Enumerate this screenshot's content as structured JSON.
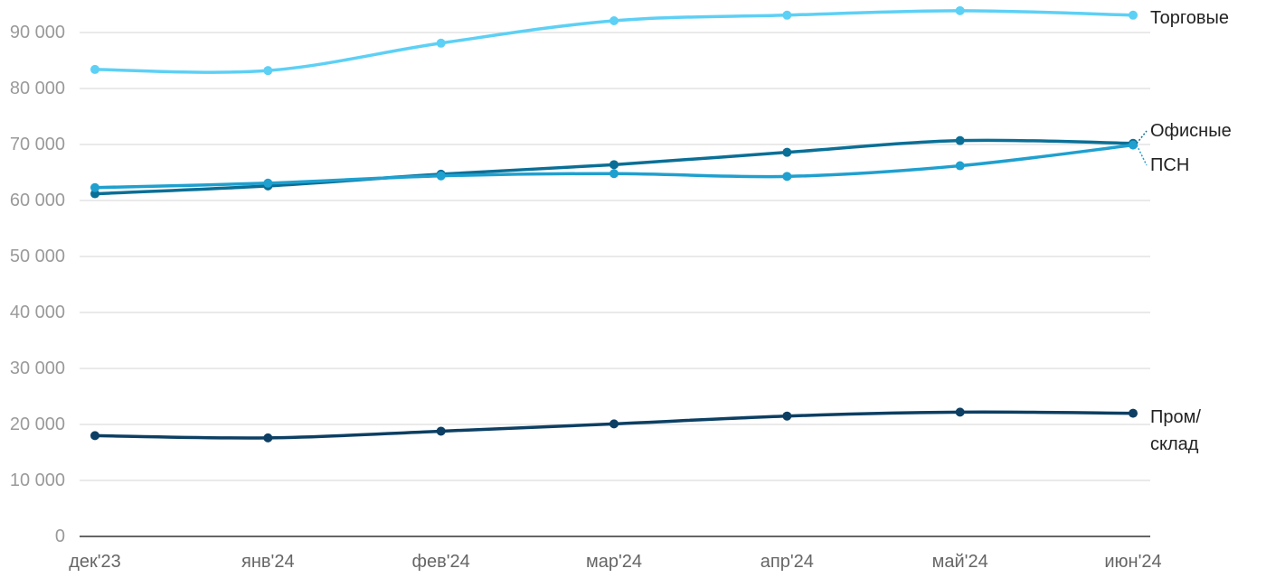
{
  "chart_data": {
    "type": "line",
    "title": "",
    "xlabel": "",
    "ylabel": "",
    "categories": [
      "дек'23",
      "янв'24",
      "фев'24",
      "мар'24",
      "апр'24",
      "май'24",
      "июн'24"
    ],
    "y_ticks": [
      "0",
      "10 000",
      "20 000",
      "30 000",
      "40 000",
      "50 000",
      "60 000",
      "70 000",
      "80 000",
      "90 000"
    ],
    "ylim": [
      0,
      96000
    ],
    "grid": true,
    "legend": "end-of-line labels",
    "series": [
      {
        "name": "Торговые",
        "color": "#5dd0f5",
        "values": [
          83400,
          83200,
          88100,
          92100,
          93100,
          93900,
          93100
        ]
      },
      {
        "name": "Офисные",
        "color": "#0a6f96",
        "values": [
          61200,
          62600,
          64700,
          66400,
          68600,
          70700,
          70200
        ]
      },
      {
        "name": "ПСН",
        "color": "#1fa0cf",
        "values": [
          62300,
          63100,
          64400,
          64800,
          64300,
          66200,
          69900
        ]
      },
      {
        "name": "Пром/\nсклад",
        "color": "#0c3f63",
        "values": [
          18000,
          17600,
          18800,
          20100,
          21500,
          22200,
          22000
        ]
      }
    ]
  }
}
